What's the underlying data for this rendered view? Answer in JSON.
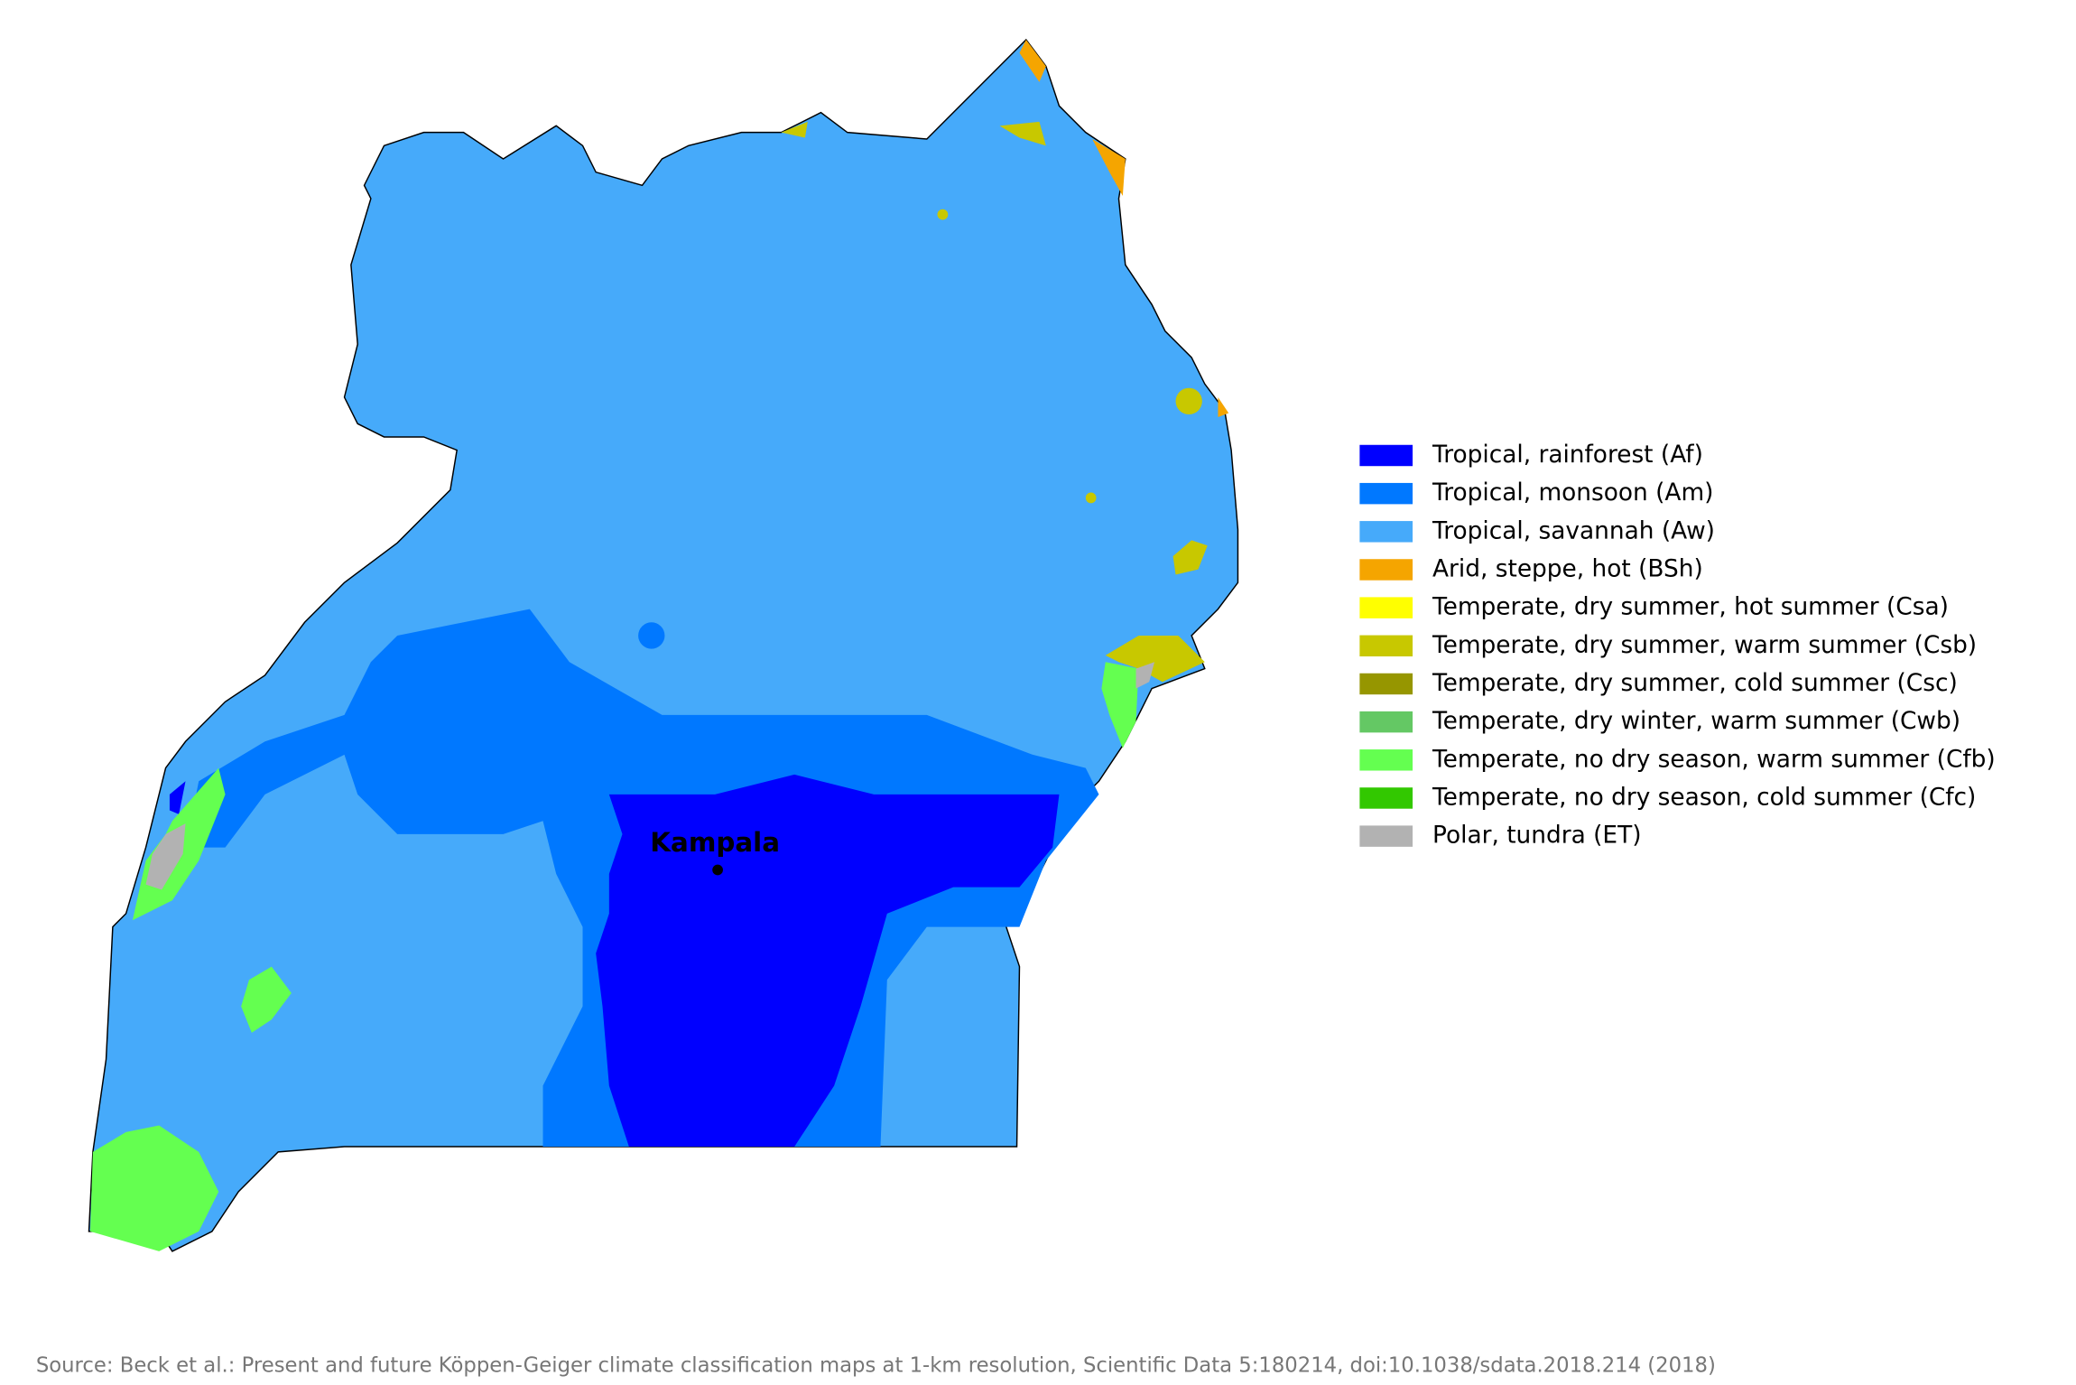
{
  "legend": [
    {
      "label": "Tropical, rainforest (Af)",
      "color": "#0000ff"
    },
    {
      "label": "Tropical, monsoon (Am)",
      "color": "#0078ff"
    },
    {
      "label": "Tropical, savannah (Aw)",
      "color": "#46aafa"
    },
    {
      "label": "Arid, steppe, hot (BSh)",
      "color": "#f5a500"
    },
    {
      "label": "Temperate, dry summer, hot summer (Csa)",
      "color": "#ffff00"
    },
    {
      "label": "Temperate, dry summer, warm summer (Csb)",
      "color": "#c8c800"
    },
    {
      "label": "Temperate, dry summer, cold summer (Csc)",
      "color": "#969600"
    },
    {
      "label": "Temperate, dry winter, warm summer (Cwb)",
      "color": "#64c864"
    },
    {
      "label": "Temperate, no dry season, warm summer (Cfb)",
      "color": "#64ff50"
    },
    {
      "label": "Temperate, no dry season, cold summer (Cfc)",
      "color": "#32c800"
    },
    {
      "label": "Polar, tundra (ET)",
      "color": "#b2b2b2"
    }
  ],
  "city": {
    "label": "Kampala"
  },
  "source": "Source: Beck et al.: Present and future Köppen-Geiger climate classification maps at 1-km resolution, Scientific Data 5:180214, doi:10.1038/sdata.2018.214 (2018)"
}
